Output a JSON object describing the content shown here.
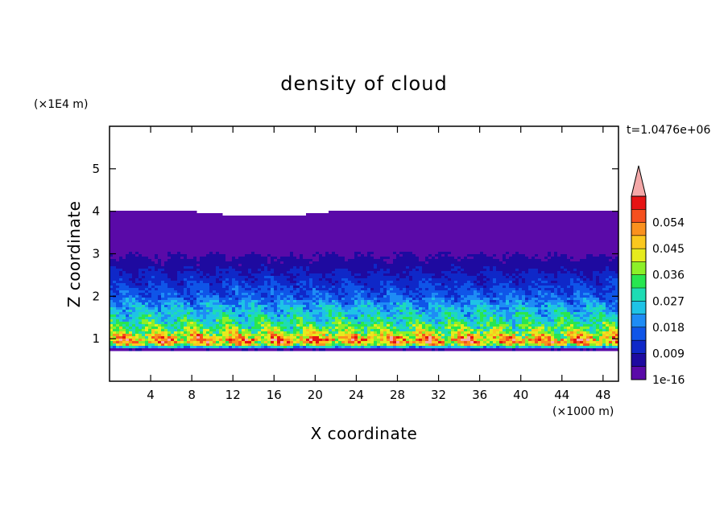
{
  "chart_data": {
    "type": "heatmap",
    "title": "density of cloud",
    "xlabel": "X coordinate",
    "ylabel": "Z coordinate",
    "x_unit": "(×1000 m)",
    "y_unit": "(×1E4 m)",
    "time_label": "t=1.0476e+06",
    "xlim": [
      0,
      49.5
    ],
    "ylim": [
      0,
      6
    ],
    "x_ticks": [
      "4",
      "8",
      "12",
      "16",
      "20",
      "24",
      "28",
      "32",
      "36",
      "40",
      "44",
      "48"
    ],
    "y_ticks": [
      "1",
      "2",
      "3",
      "4",
      "5"
    ],
    "colorbar": {
      "tick_labels": [
        "1e-16",
        "0.009",
        "0.018",
        "0.027",
        "0.036",
        "0.045",
        "0.054"
      ],
      "levels": 13,
      "level_step": 0.0045,
      "colors": [
        "#5a0aa8",
        "#1e0aa0",
        "#0f28c8",
        "#0f55e8",
        "#1e8cf5",
        "#1ec3e6",
        "#1edcb4",
        "#28e650",
        "#8cf028",
        "#e6eb1e",
        "#fac81e",
        "#fa911e",
        "#f5501e",
        "#e61414"
      ],
      "overflow_color": "#f4a8a8"
    },
    "profile": [
      {
        "z": 0.7,
        "value": 0.0
      },
      {
        "z": 0.75,
        "value": 0.004
      },
      {
        "z": 0.85,
        "value": 0.04
      },
      {
        "z": 0.95,
        "value": 0.054
      },
      {
        "z": 1.05,
        "value": 0.045
      },
      {
        "z": 1.2,
        "value": 0.036
      },
      {
        "z": 1.4,
        "value": 0.03
      },
      {
        "z": 1.7,
        "value": 0.024
      },
      {
        "z": 2.0,
        "value": 0.016
      },
      {
        "z": 2.4,
        "value": 0.011
      },
      {
        "z": 2.8,
        "value": 0.006
      },
      {
        "z": 3.2,
        "value": 0.002
      },
      {
        "z": 4.0,
        "value": 0.0001
      }
    ],
    "cloud_top_z": 4.0,
    "cloud_base_z": 0.7
  }
}
